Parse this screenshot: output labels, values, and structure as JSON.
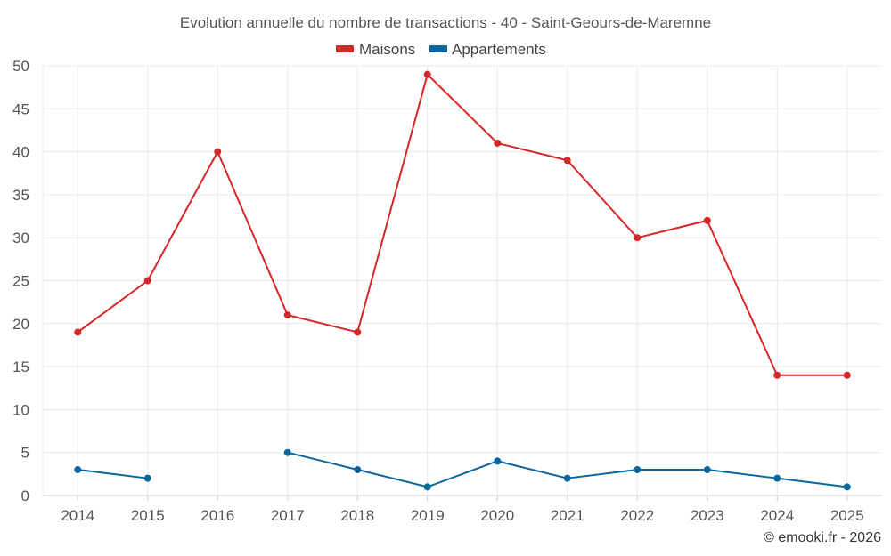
{
  "chart_data": {
    "type": "line",
    "title": "Evolution annuelle du nombre de transactions - 40 - Saint-Geours-de-Maremne",
    "xlabel": "",
    "ylabel": "",
    "categories": [
      "2014",
      "2015",
      "2016",
      "2017",
      "2018",
      "2019",
      "2020",
      "2021",
      "2022",
      "2023",
      "2024",
      "2025"
    ],
    "ylim": [
      0,
      50
    ],
    "yticks": [
      0,
      5,
      10,
      15,
      20,
      25,
      30,
      35,
      40,
      45,
      50
    ],
    "grid": true,
    "legend_position": "top-center",
    "series": [
      {
        "name": "Maisons",
        "color": "#d62728",
        "values": [
          19,
          25,
          40,
          21,
          19,
          49,
          41,
          39,
          30,
          32,
          14,
          14
        ]
      },
      {
        "name": "Appartements",
        "color": "#0a679d",
        "values": [
          3,
          2,
          null,
          5,
          3,
          1,
          4,
          2,
          3,
          3,
          2,
          1
        ]
      }
    ]
  },
  "credit": "© emooki.fr - 2026"
}
